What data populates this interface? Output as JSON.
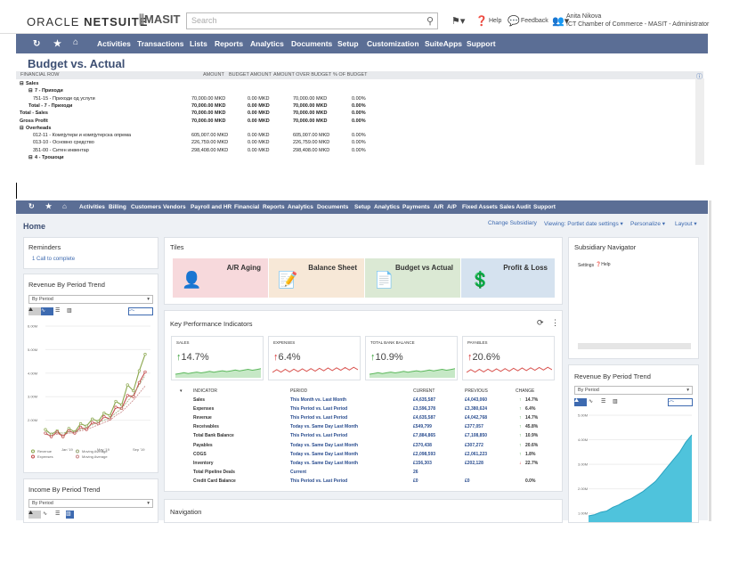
{
  "topbar": {
    "brand_a": "ORACLE",
    "brand_b": "NETSUITE",
    "masit": "MASIT",
    "search_placeholder": "Search",
    "help": "Help",
    "feedback": "Feedback",
    "user_name": "Anita Nikova",
    "user_role": "ICT Chamber of Commerce - MASIT - Administrator"
  },
  "nav1": [
    "Activities",
    "Transactions",
    "Lists",
    "Reports",
    "Analytics",
    "Documents",
    "Setup",
    "Customization",
    "SuiteApps",
    "Support"
  ],
  "report": {
    "title": "Budget vs. Actual",
    "columns": [
      "FINANCIAL ROW",
      "AMOUNT",
      "BUDGET AMOUNT",
      "AMOUNT OVER BUDGET",
      "% OF BUDGET"
    ],
    "rows": [
      {
        "label": "Sales",
        "amount": "",
        "budget": "",
        "over": "",
        "pct": "",
        "indent": 0,
        "bold": true,
        "toggle": "⊟"
      },
      {
        "label": "7 - Приходи",
        "amount": "",
        "budget": "",
        "over": "",
        "pct": "",
        "indent": 1,
        "bold": true,
        "toggle": "⊟"
      },
      {
        "label": "751-15 - Приходи од услуги",
        "amount": "70,000.00 MKD",
        "budget": "0.00 MKD",
        "over": "70,000.00 MKD",
        "pct": "0.00%",
        "indent": 2,
        "bold": false,
        "toggle": ""
      },
      {
        "label": "Total - 7 - Приходи",
        "amount": "70,000.00 MKD",
        "budget": "0.00 MKD",
        "over": "70,000.00 MKD",
        "pct": "0.00%",
        "indent": 1,
        "bold": true,
        "toggle": ""
      },
      {
        "label": "Total - Sales",
        "amount": "70,000.00 MKD",
        "budget": "0.00 MKD",
        "over": "70,000.00 MKD",
        "pct": "0.00%",
        "indent": 0,
        "bold": true,
        "toggle": ""
      },
      {
        "label": "Gross Profit",
        "amount": "70,000.00 MKD",
        "budget": "0.00 MKD",
        "over": "70,000.00 MKD",
        "pct": "0.00%",
        "indent": 0,
        "bold": true,
        "toggle": ""
      },
      {
        "label": "Overheads",
        "amount": "",
        "budget": "",
        "over": "",
        "pct": "",
        "indent": 0,
        "bold": true,
        "toggle": "⊟"
      },
      {
        "label": "012-11 - Компјутери и компјутерска опрема",
        "amount": "605,007.00 MKD",
        "budget": "0.00 MKD",
        "over": "605,007.00 MKD",
        "pct": "0.00%",
        "indent": 2,
        "bold": false,
        "toggle": ""
      },
      {
        "label": "013-10 - Основно средство",
        "amount": "226,759.00 MKD",
        "budget": "0.00 MKD",
        "over": "226,759.00 MKD",
        "pct": "0.00%",
        "indent": 2,
        "bold": false,
        "toggle": ""
      },
      {
        "label": "351-00 - Ситен инвентар",
        "amount": "298,408.00 MKD",
        "budget": "0.00 MKD",
        "over": "298,408.00 MKD",
        "pct": "0.00%",
        "indent": 2,
        "bold": false,
        "toggle": ""
      },
      {
        "label": "4 - Трошоци",
        "amount": "",
        "budget": "",
        "over": "",
        "pct": "",
        "indent": 1,
        "bold": true,
        "toggle": "⊟"
      }
    ]
  },
  "nav2": [
    "Activities",
    "Billing",
    "Customers",
    "Vendors",
    "Payroll and HR",
    "Financial",
    "Reports",
    "Analytics",
    "Documents",
    "Setup",
    "Analytics",
    "Payments",
    "A/R",
    "A/P",
    "Fixed Assets",
    "Sales Audit",
    "Support"
  ],
  "home": {
    "title": "Home",
    "change_subsidiary": "Change Subsidiary",
    "viewing": "Viewing: Portlet date settings",
    "personalize": "Personalize",
    "layout": "Layout"
  },
  "reminders": {
    "title": "Reminders",
    "count": "1",
    "item": "Call to complete"
  },
  "revenue_trend": {
    "title": "Revenue By Period Trend",
    "select": "By Period"
  },
  "income_trend": {
    "title": "Income By Period Trend",
    "select": "By Period"
  },
  "tiles": {
    "title": "Tiles",
    "items": [
      "A/R Aging",
      "Balance Sheet",
      "Budget vs Actual",
      "Profit & Loss"
    ]
  },
  "kpi": {
    "title": "Key Performance Indicators",
    "boxes": [
      {
        "label": "SALES",
        "value": "14.7%",
        "dir": "up"
      },
      {
        "label": "EXPENSES",
        "value": "6.4%",
        "dir": "up"
      },
      {
        "label": "TOTAL BANK BALANCE",
        "value": "10.9%",
        "dir": "up"
      },
      {
        "label": "PAYABLES",
        "value": "20.6%",
        "dir": "up"
      }
    ],
    "columns": [
      "INDICATOR",
      "PERIOD",
      "CURRENT",
      "PREVIOUS",
      "CHANGE"
    ],
    "rows": [
      [
        "Sales",
        "This Month vs. Last Month",
        "£4,635,587",
        "£4,043,060",
        "14.7%",
        "up"
      ],
      [
        "Expenses",
        "This Period vs. Last Period",
        "£3,596,378",
        "£3,380,624",
        "6.4%",
        "up"
      ],
      [
        "Revenue",
        "This Period vs. Last Period",
        "£4,635,587",
        "£4,042,768",
        "14.7%",
        "up"
      ],
      [
        "Receivables",
        "Today vs. Same Day Last Month",
        "£549,799",
        "£377,057",
        "45.8%",
        "up"
      ],
      [
        "Total Bank Balance",
        "This Period vs. Last Period",
        "£7,884,865",
        "£7,108,850",
        "10.9%",
        "up"
      ],
      [
        "Payables",
        "Today vs. Same Day Last Month",
        "£370,438",
        "£307,272",
        "20.6%",
        "up"
      ],
      [
        "COGS",
        "Today vs. Same Day Last Month",
        "£2,098,593",
        "£2,061,223",
        "1.8%",
        "up"
      ],
      [
        "Inventory",
        "Today vs. Same Day Last Month",
        "£156,303",
        "£202,128",
        "22.7%",
        "down"
      ],
      [
        "Total Pipeline Deals",
        "Current",
        "26",
        "",
        "",
        ""
      ],
      [
        "Credit Card Balance",
        "This Period vs. Last Period",
        "£0",
        "£0",
        "0.0%",
        ""
      ]
    ]
  },
  "navigation": {
    "title": "Navigation"
  },
  "subsidiary": {
    "title": "Subsidiary Navigator",
    "settings": "Settings",
    "help": "Help"
  },
  "revenue_trend2": {
    "title": "Revenue By Period Trend",
    "select": "By Period"
  },
  "chart_data": [
    {
      "type": "line",
      "title": "Revenue By Period Trend",
      "yticks": [
        "2.00M",
        "3.00M",
        "4.00M",
        "5.00M",
        "6.00M"
      ],
      "yticks_full": [
        "0",
        "1.00M",
        "2.00M",
        "3.00M",
        "4.00M",
        "5.00M",
        "6.00M"
      ],
      "xticks": [
        "Jan '19",
        "May '19",
        "Sep '19"
      ],
      "series": [
        {
          "name": "Revenue",
          "values": [
            1.6,
            1.4,
            1.55,
            1.3,
            1.65,
            1.5,
            1.85,
            1.75,
            2.05,
            1.95,
            2.3,
            2.2,
            2.8,
            2.65,
            3.5,
            3.25,
            4.1,
            4.8
          ]
        },
        {
          "name": "Expenses",
          "values": [
            1.45,
            1.3,
            1.5,
            1.3,
            1.55,
            1.45,
            1.7,
            1.6,
            1.9,
            1.85,
            2.15,
            2.05,
            2.55,
            2.5,
            3.05,
            3.0,
            3.6,
            4.05
          ]
        },
        {
          "name": "Moving Average",
          "values": [
            1.5,
            1.45,
            1.5,
            1.45,
            1.5,
            1.5,
            1.6,
            1.7,
            1.8,
            1.9,
            2.0,
            2.1,
            2.3,
            2.5,
            2.8,
            3.1,
            3.5,
            3.9
          ]
        },
        {
          "name": "Moving Average",
          "values": [
            1.4,
            1.35,
            1.4,
            1.38,
            1.45,
            1.45,
            1.55,
            1.6,
            1.7,
            1.8,
            1.9,
            2.0,
            2.2,
            2.35,
            2.6,
            2.85,
            3.15,
            3.45
          ]
        }
      ]
    },
    {
      "type": "area",
      "title": "Revenue By Period Trend",
      "yticks": [
        "1.00M",
        "2.00M",
        "3.00M",
        "4.00M",
        "5.00M"
      ],
      "series": [
        {
          "name": "Revenue",
          "values": [
            0.9,
            0.95,
            1.05,
            1.1,
            1.25,
            1.35,
            1.5,
            1.6,
            1.75,
            1.9,
            2.1,
            2.3,
            2.6,
            2.9,
            3.2,
            3.5,
            3.9,
            4.2
          ]
        }
      ]
    }
  ]
}
